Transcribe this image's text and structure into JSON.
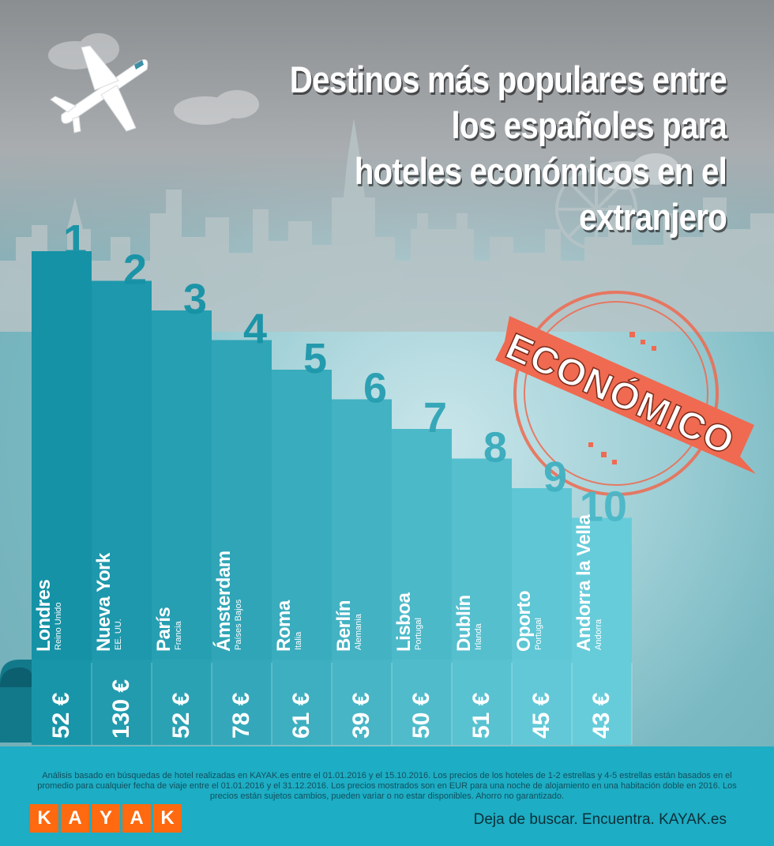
{
  "title": [
    "Destinos más populares entre",
    "los españoles para",
    "hoteles económicos en el extranjero"
  ],
  "stamp_text": "ECONÓMICO",
  "chart_data": {
    "type": "bar",
    "title": "Destinos más populares entre los españoles para hoteles económicos en el extranjero",
    "categories": [
      "Londres",
      "Nueva York",
      "París",
      "Ámsterdam",
      "Roma",
      "Berlín",
      "Lisboa",
      "Dublín",
      "Oporto",
      "Andorra la Vella"
    ],
    "countries": [
      "Reino Unido",
      "EE. UU.",
      "Francia",
      "Países Bajos",
      "Italia",
      "Alemania",
      "Portugal",
      "Irlanda",
      "Portugal",
      "Andorra"
    ],
    "ranks": [
      "1",
      "2",
      "3",
      "4",
      "5",
      "6",
      "7",
      "8",
      "9",
      "10"
    ],
    "values": [
      52,
      130,
      52,
      78,
      61,
      39,
      50,
      51,
      45,
      43
    ],
    "price_labels": [
      "52 €",
      "130 €",
      "52 €",
      "78 €",
      "61 €",
      "39 €",
      "50 €",
      "51 €",
      "45 €",
      "43 €"
    ],
    "currency": "€"
  },
  "colors": {
    "bar_dark": "#1592a6",
    "bar_light": "#5fc8d6",
    "stamp": "#ef6a50",
    "footer": "#1dadc4",
    "kayak_orange": "#ff690f"
  },
  "footer": {
    "disclaimer": "Análisis basado en búsquedas de hotel realizadas en KAYAK.es entre el 01.01.2016 y el 15.10.2016. Los precios de los hoteles de 1-2 estrellas y 4-5 estrellas están basados en el promedio para cualquier fecha de viaje entre el 01.01.2016 y el 31.12.2016. Los precios mostrados son en EUR para una noche de alojamiento en una habitación doble en 2016. Los precios están sujetos cambios, pueden variar o no estar disponibles. Ahorro no garantizado.",
    "logo_letters": [
      "K",
      "A",
      "Y",
      "A",
      "K"
    ],
    "tagline": "Deja de buscar. Encuentra. KAYAK.es"
  }
}
